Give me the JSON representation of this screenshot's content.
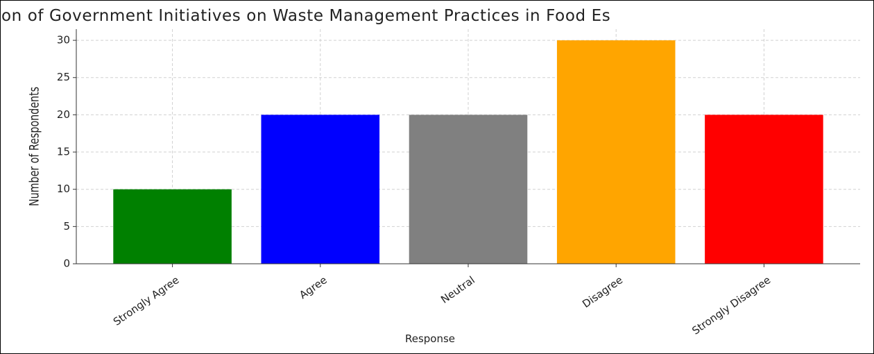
{
  "chart_data": {
    "type": "bar",
    "title": "on of Government Initiatives on Waste Management Practices in Food Es",
    "x_label": "Response",
    "y_label": "Number of Respondents",
    "categories": [
      "Strongly Agree",
      "Agree",
      "Neutral",
      "Disagree",
      "Strongly Disagree"
    ],
    "values": [
      10,
      20,
      20,
      30,
      20
    ],
    "colors": [
      "#008000",
      "#0000ff",
      "#808080",
      "#ffa500",
      "#ff0000"
    ],
    "ylim": [
      0,
      31.5
    ],
    "yticks": [
      0,
      5,
      10,
      15,
      20,
      25,
      30
    ],
    "grid": true
  }
}
